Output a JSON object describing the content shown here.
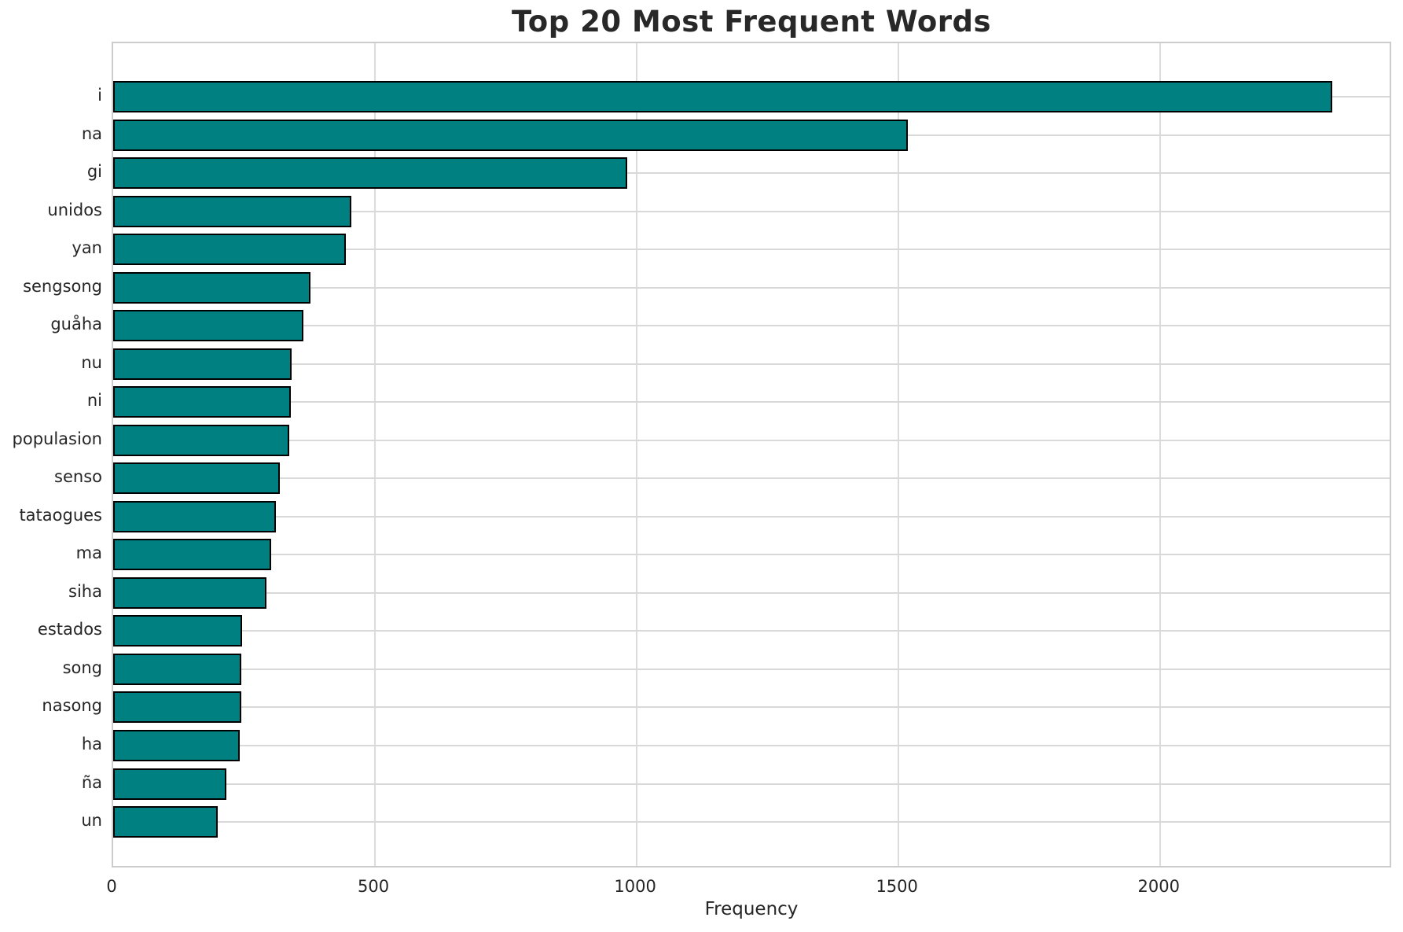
{
  "title": "Top 20 Most Frequent Words",
  "chart_data": {
    "type": "bar",
    "orientation": "horizontal",
    "title": "Top 20 Most Frequent Words",
    "xlabel": "Frequency",
    "ylabel": "",
    "categories": [
      "i",
      "na",
      "gi",
      "unidos",
      "yan",
      "sengsong",
      "guåha",
      "nu",
      "ni",
      "populasion",
      "senso",
      "tataogues",
      "ma",
      "siha",
      "estados",
      "song",
      "nasong",
      "ha",
      "ña",
      "un"
    ],
    "values": [
      2322,
      1512,
      976,
      449,
      438,
      371,
      358,
      335,
      333,
      331,
      312,
      305,
      295,
      287,
      240,
      239,
      238,
      236,
      210,
      193
    ],
    "xlim": [
      0,
      2438
    ],
    "xticks": [
      0,
      500,
      1000,
      1500,
      2000
    ],
    "grid": true,
    "legend": "none",
    "bar_color": "#008080",
    "bar_edge_color": "#000000",
    "grid_color": "#d9d9d9",
    "spine_color": "#cccccc",
    "text_color": "#262626"
  }
}
